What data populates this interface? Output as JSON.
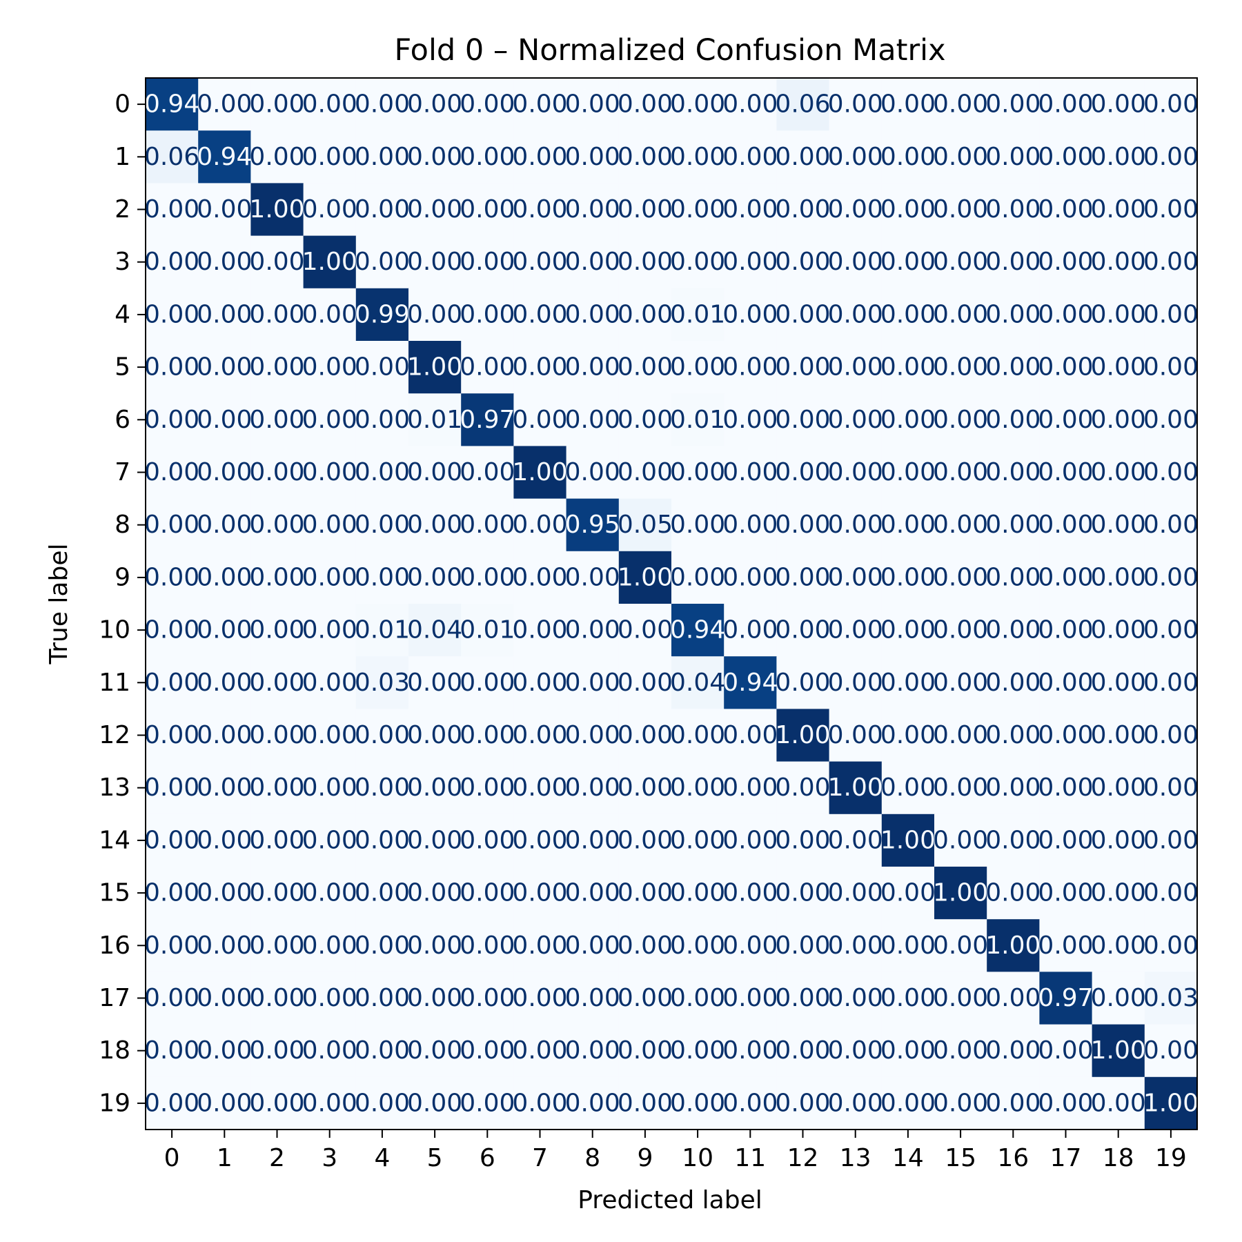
{
  "chart_data": {
    "type": "heatmap",
    "title": "Fold 0 – Normalized Confusion Matrix",
    "xlabel": "Predicted label",
    "ylabel": "True label",
    "x_categories": [
      "0",
      "1",
      "2",
      "3",
      "4",
      "5",
      "6",
      "7",
      "8",
      "9",
      "10",
      "11",
      "12",
      "13",
      "14",
      "15",
      "16",
      "17",
      "18",
      "19"
    ],
    "y_categories": [
      "0",
      "1",
      "2",
      "3",
      "4",
      "5",
      "6",
      "7",
      "8",
      "9",
      "10",
      "11",
      "12",
      "13",
      "14",
      "15",
      "16",
      "17",
      "18",
      "19"
    ],
    "value_range": [
      0,
      1
    ],
    "value_format": "0.00",
    "colormap": "Blues",
    "color_low": "#f7fbff",
    "color_high": "#08306b",
    "text_color_dark_cells": "#f7fbff",
    "text_color_light_cells": "#08306b",
    "grid": false,
    "values": [
      [
        0.94,
        0,
        0,
        0,
        0,
        0,
        0,
        0,
        0,
        0,
        0,
        0,
        0.06,
        0,
        0,
        0,
        0,
        0,
        0,
        0
      ],
      [
        0.06,
        0.94,
        0,
        0,
        0,
        0,
        0,
        0,
        0,
        0,
        0,
        0,
        0,
        0,
        0,
        0,
        0,
        0,
        0,
        0
      ],
      [
        0,
        0,
        1.0,
        0,
        0,
        0,
        0,
        0,
        0,
        0,
        0,
        0,
        0,
        0,
        0,
        0,
        0,
        0,
        0,
        0
      ],
      [
        0,
        0,
        0,
        1.0,
        0,
        0,
        0,
        0,
        0,
        0,
        0,
        0,
        0,
        0,
        0,
        0,
        0,
        0,
        0,
        0
      ],
      [
        0,
        0,
        0,
        0,
        0.99,
        0,
        0,
        0,
        0,
        0,
        0.01,
        0,
        0,
        0,
        0,
        0,
        0,
        0,
        0,
        0
      ],
      [
        0,
        0,
        0,
        0,
        0,
        1.0,
        0,
        0,
        0,
        0,
        0,
        0,
        0,
        0,
        0,
        0,
        0,
        0,
        0,
        0
      ],
      [
        0,
        0,
        0,
        0,
        0,
        0.01,
        0.97,
        0,
        0,
        0,
        0.01,
        0,
        0,
        0,
        0,
        0,
        0,
        0,
        0,
        0
      ],
      [
        0,
        0,
        0,
        0,
        0,
        0,
        0,
        1.0,
        0,
        0,
        0,
        0,
        0,
        0,
        0,
        0,
        0,
        0,
        0,
        0
      ],
      [
        0,
        0,
        0,
        0,
        0,
        0,
        0,
        0,
        0.95,
        0.05,
        0,
        0,
        0,
        0,
        0,
        0,
        0,
        0,
        0,
        0
      ],
      [
        0,
        0,
        0,
        0,
        0,
        0,
        0,
        0,
        0,
        1.0,
        0,
        0,
        0,
        0,
        0,
        0,
        0,
        0,
        0,
        0
      ],
      [
        0,
        0,
        0,
        0,
        0.01,
        0.04,
        0.01,
        0,
        0,
        0,
        0.94,
        0,
        0,
        0,
        0,
        0,
        0,
        0,
        0,
        0
      ],
      [
        0,
        0,
        0,
        0,
        0.03,
        0,
        0,
        0,
        0,
        0,
        0.04,
        0.94,
        0,
        0,
        0,
        0,
        0,
        0,
        0,
        0
      ],
      [
        0,
        0,
        0,
        0,
        0,
        0,
        0,
        0,
        0,
        0,
        0,
        0,
        1.0,
        0,
        0,
        0,
        0,
        0,
        0,
        0
      ],
      [
        0,
        0,
        0,
        0,
        0,
        0,
        0,
        0,
        0,
        0,
        0,
        0,
        0,
        1.0,
        0,
        0,
        0,
        0,
        0,
        0
      ],
      [
        0,
        0,
        0,
        0,
        0,
        0,
        0,
        0,
        0,
        0,
        0,
        0,
        0,
        0,
        1.0,
        0,
        0,
        0,
        0,
        0
      ],
      [
        0,
        0,
        0,
        0,
        0,
        0,
        0,
        0,
        0,
        0,
        0,
        0,
        0,
        0,
        0,
        1.0,
        0,
        0,
        0,
        0
      ],
      [
        0,
        0,
        0,
        0,
        0,
        0,
        0,
        0,
        0,
        0,
        0,
        0,
        0,
        0,
        0,
        0,
        1.0,
        0,
        0,
        0
      ],
      [
        0,
        0,
        0,
        0,
        0,
        0,
        0,
        0,
        0,
        0,
        0,
        0,
        0,
        0,
        0,
        0,
        0,
        0.97,
        0,
        0.03
      ],
      [
        0,
        0,
        0,
        0,
        0,
        0,
        0,
        0,
        0,
        0,
        0,
        0,
        0,
        0,
        0,
        0,
        0,
        0,
        1.0,
        0
      ],
      [
        0,
        0,
        0,
        0,
        0,
        0,
        0,
        0,
        0,
        0,
        0,
        0,
        0,
        0,
        0,
        0,
        0,
        0,
        0,
        1.0
      ]
    ]
  }
}
